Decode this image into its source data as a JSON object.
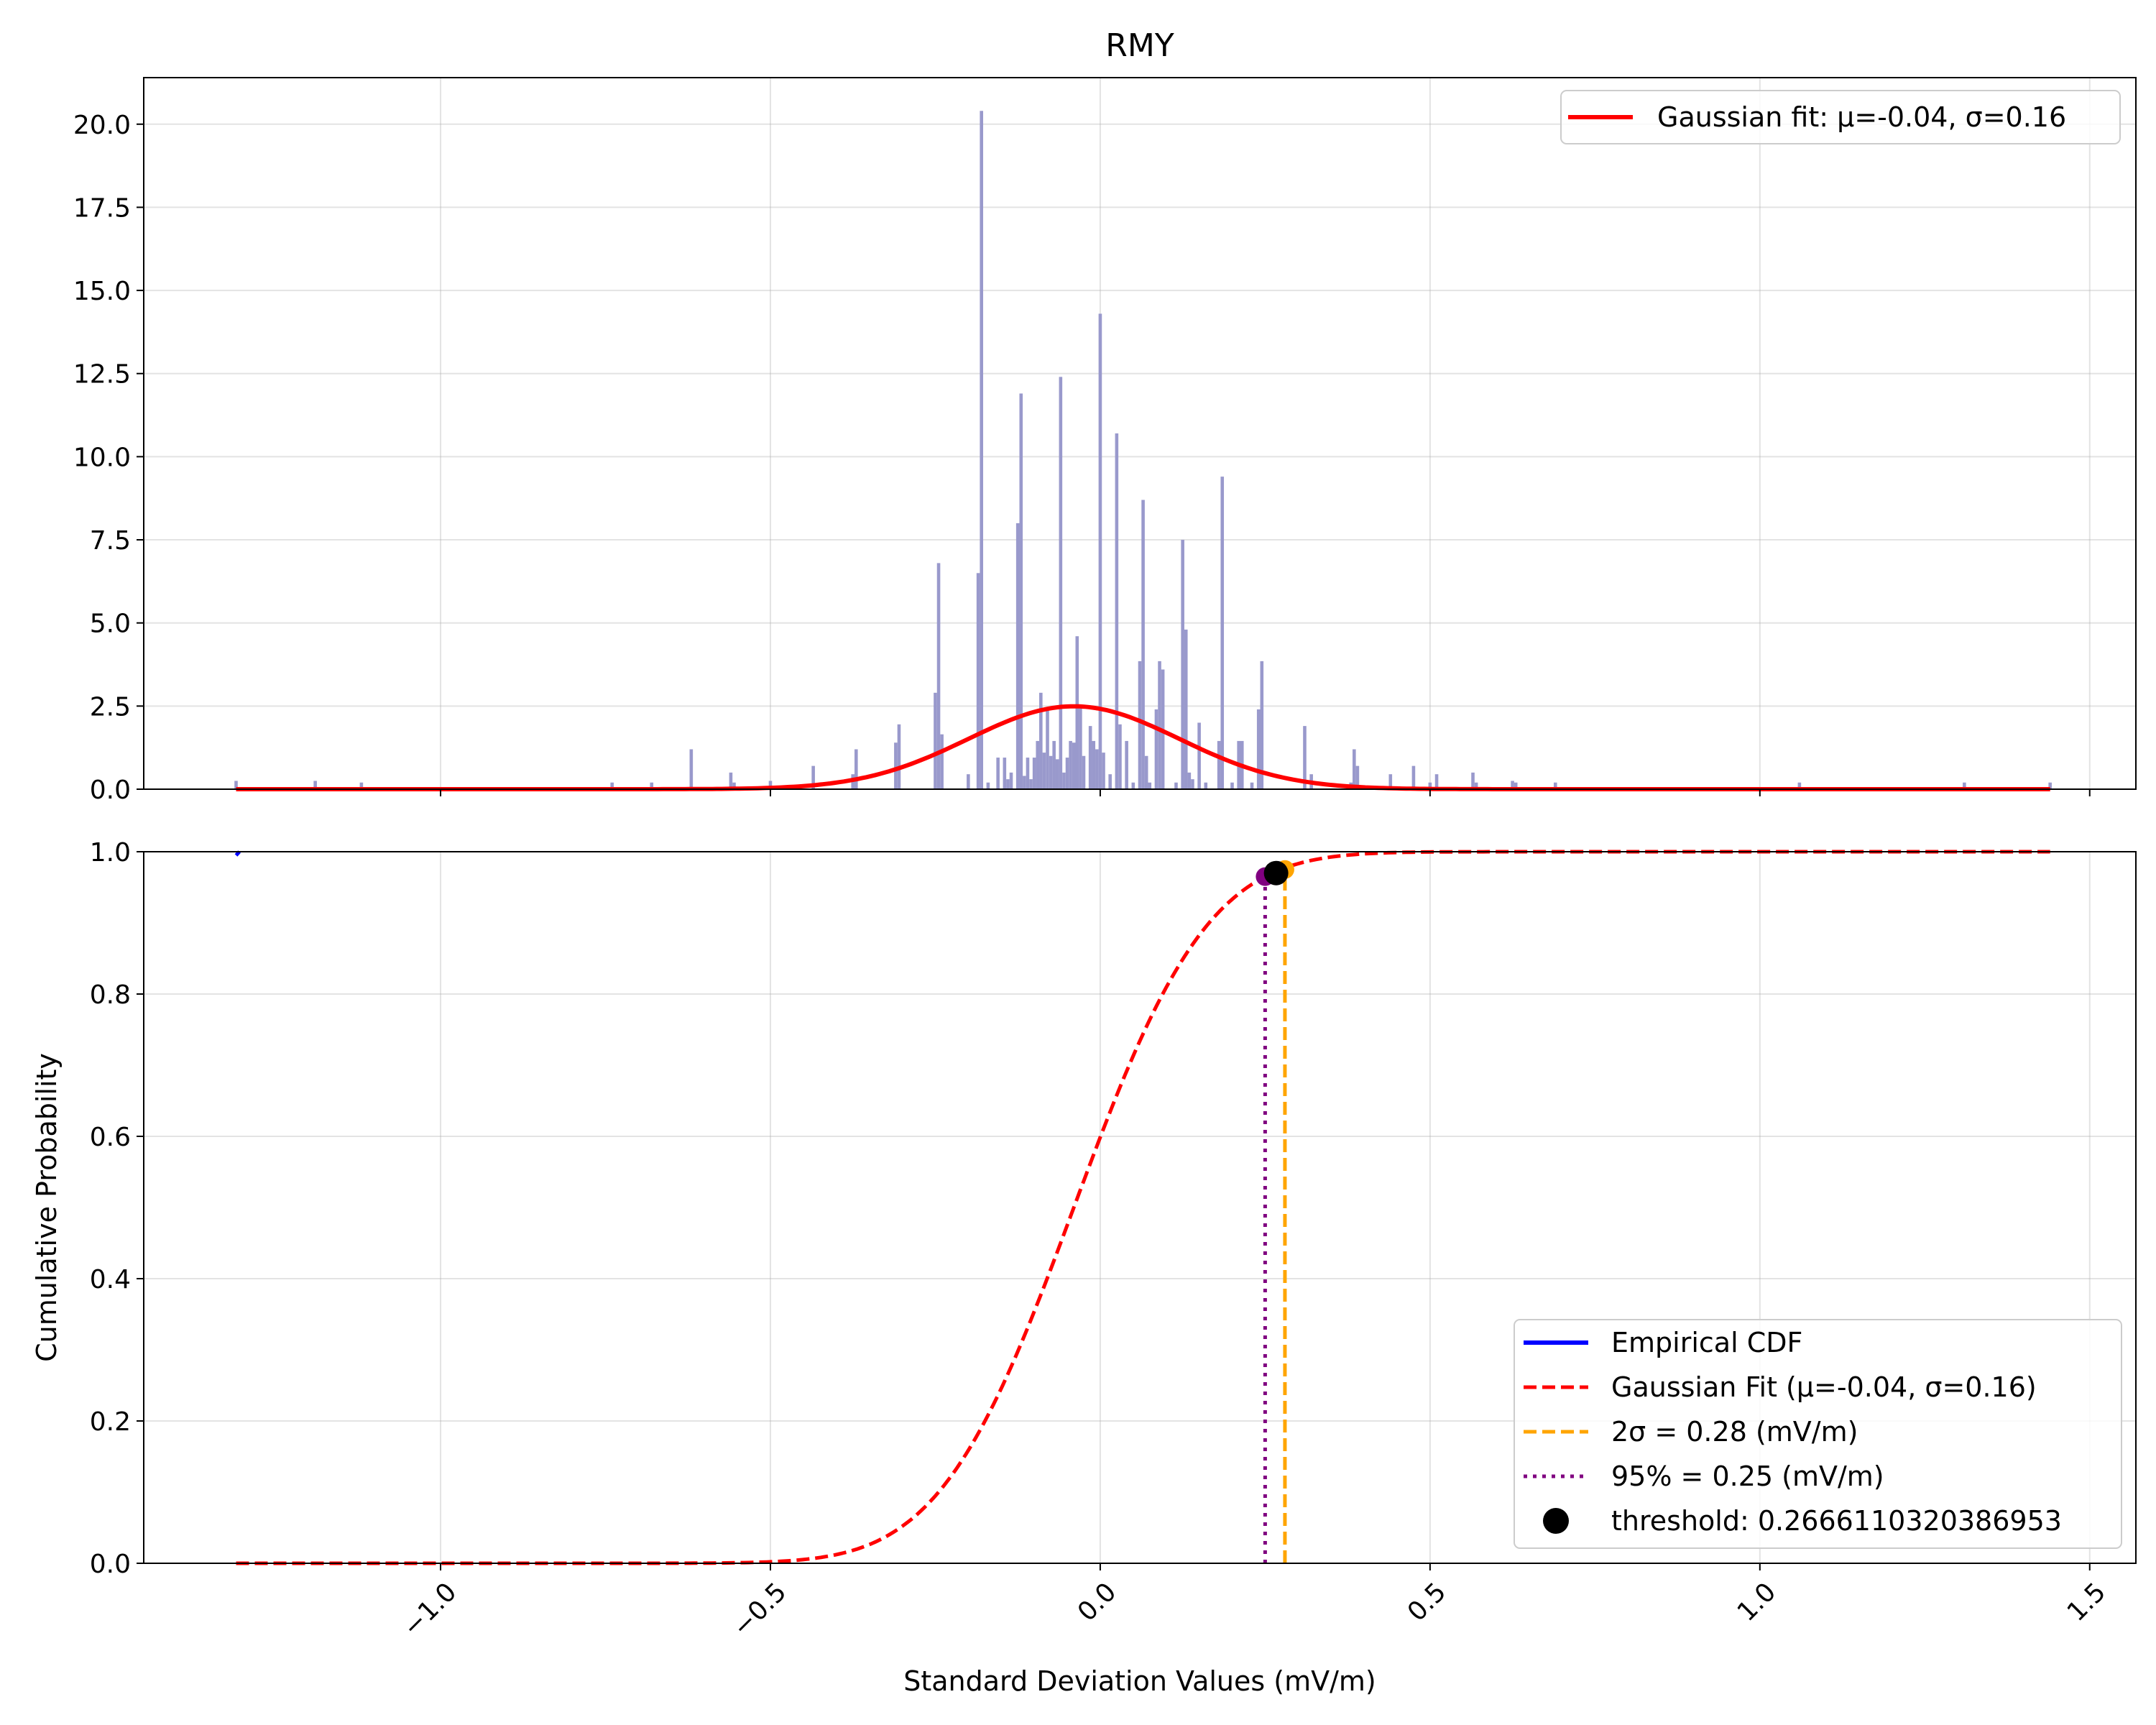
{
  "chart_data": [
    {
      "type": "bar",
      "panel": "top",
      "title": "RMY",
      "xlabel": "",
      "ylabel": "",
      "xlim": [
        -1.45,
        1.57
      ],
      "ylim": [
        0,
        21.4
      ],
      "grid": true,
      "legend_position": "top-right",
      "yticks": [
        {
          "value": 0,
          "label": "0.0"
        },
        {
          "value": 2.5,
          "label": "2.5"
        },
        {
          "value": 5,
          "label": "5.0"
        },
        {
          "value": 7.5,
          "label": "7.5"
        },
        {
          "value": 10,
          "label": "10.0"
        },
        {
          "value": 12.5,
          "label": "12.5"
        },
        {
          "value": 15,
          "label": "15.0"
        },
        {
          "value": 17.5,
          "label": "17.5"
        },
        {
          "value": 20,
          "label": "20.0"
        }
      ],
      "histogram": {
        "color": "#9999cc",
        "bin_width": 0.005,
        "bins": [
          [
            -1.31,
            0.25
          ],
          [
            -1.19,
            0.25
          ],
          [
            -1.12,
            0.2
          ],
          [
            -0.74,
            0.2
          ],
          [
            -0.68,
            0.2
          ],
          [
            -0.62,
            1.2
          ],
          [
            -0.56,
            0.5
          ],
          [
            -0.555,
            0.2
          ],
          [
            -0.5,
            0.25
          ],
          [
            -0.435,
            0.7
          ],
          [
            -0.375,
            0.45
          ],
          [
            -0.37,
            1.2
          ],
          [
            -0.31,
            1.4
          ],
          [
            -0.305,
            1.95
          ],
          [
            -0.25,
            2.9
          ],
          [
            -0.245,
            6.8
          ],
          [
            -0.24,
            1.65
          ],
          [
            -0.2,
            0.45
          ],
          [
            -0.185,
            6.5
          ],
          [
            -0.18,
            20.4
          ],
          [
            -0.17,
            0.2
          ],
          [
            -0.155,
            0.95
          ],
          [
            -0.145,
            0.95
          ],
          [
            -0.14,
            0.3
          ],
          [
            -0.135,
            0.5
          ],
          [
            -0.125,
            8.0
          ],
          [
            -0.12,
            11.9
          ],
          [
            -0.115,
            0.4
          ],
          [
            -0.11,
            0.95
          ],
          [
            -0.105,
            0.3
          ],
          [
            -0.1,
            0.95
          ],
          [
            -0.095,
            1.45
          ],
          [
            -0.09,
            2.9
          ],
          [
            -0.085,
            1.1
          ],
          [
            -0.08,
            2.4
          ],
          [
            -0.075,
            1.0
          ],
          [
            -0.07,
            1.45
          ],
          [
            -0.065,
            0.9
          ],
          [
            -0.06,
            12.4
          ],
          [
            -0.055,
            0.5
          ],
          [
            -0.05,
            0.95
          ],
          [
            -0.045,
            1.45
          ],
          [
            -0.04,
            1.4
          ],
          [
            -0.035,
            4.6
          ],
          [
            -0.03,
            2.5
          ],
          [
            -0.025,
            1.0
          ],
          [
            -0.015,
            1.9
          ],
          [
            -0.01,
            1.45
          ],
          [
            -0.005,
            1.2
          ],
          [
            0.0,
            14.3
          ],
          [
            0.005,
            1.1
          ],
          [
            0.015,
            0.45
          ],
          [
            0.025,
            10.7
          ],
          [
            0.03,
            1.95
          ],
          [
            0.04,
            1.45
          ],
          [
            0.05,
            0.2
          ],
          [
            0.06,
            3.85
          ],
          [
            0.065,
            8.7
          ],
          [
            0.07,
            1.0
          ],
          [
            0.075,
            0.2
          ],
          [
            0.085,
            2.4
          ],
          [
            0.09,
            3.85
          ],
          [
            0.095,
            3.6
          ],
          [
            0.115,
            0.2
          ],
          [
            0.125,
            7.5
          ],
          [
            0.13,
            4.8
          ],
          [
            0.135,
            0.5
          ],
          [
            0.14,
            0.3
          ],
          [
            0.15,
            2.0
          ],
          [
            0.16,
            0.2
          ],
          [
            0.18,
            1.45
          ],
          [
            0.185,
            9.4
          ],
          [
            0.2,
            0.2
          ],
          [
            0.21,
            1.45
          ],
          [
            0.215,
            1.45
          ],
          [
            0.23,
            0.2
          ],
          [
            0.24,
            2.4
          ],
          [
            0.245,
            3.85
          ],
          [
            0.31,
            1.9
          ],
          [
            0.32,
            0.45
          ],
          [
            0.38,
            0.2
          ],
          [
            0.385,
            1.2
          ],
          [
            0.39,
            0.7
          ],
          [
            0.44,
            0.45
          ],
          [
            0.475,
            0.7
          ],
          [
            0.5,
            0.2
          ],
          [
            0.51,
            0.45
          ],
          [
            0.565,
            0.5
          ],
          [
            0.57,
            0.2
          ],
          [
            0.625,
            0.25
          ],
          [
            0.63,
            0.2
          ],
          [
            0.69,
            0.2
          ],
          [
            1.06,
            0.2
          ],
          [
            1.31,
            0.2
          ],
          [
            1.44,
            0.2
          ]
        ]
      },
      "series": [
        {
          "name": "Gaussian fit: μ=-0.04, σ=0.16",
          "type": "line",
          "color": "#ff0000",
          "mu": -0.04,
          "sigma": 0.16,
          "x_range": [
            -1.31,
            1.44
          ]
        }
      ]
    },
    {
      "type": "line",
      "panel": "bottom",
      "title": "",
      "xlabel": "Standard Deviation Values (mV/m)",
      "ylabel": "Cumulative Probability",
      "xlim": [
        -1.45,
        1.57
      ],
      "ylim": [
        0,
        1.0
      ],
      "grid": true,
      "legend_position": "lower-right",
      "xticks": [
        {
          "value": -1.0,
          "label": "−1.0"
        },
        {
          "value": -0.5,
          "label": "−0.5"
        },
        {
          "value": 0.0,
          "label": "0.0"
        },
        {
          "value": 0.5,
          "label": "0.5"
        },
        {
          "value": 1.0,
          "label": "1.0"
        },
        {
          "value": 1.5,
          "label": "1.5"
        }
      ],
      "yticks": [
        {
          "value": 0,
          "label": "0.0"
        },
        {
          "value": 0.2,
          "label": "0.2"
        },
        {
          "value": 0.4,
          "label": "0.4"
        },
        {
          "value": 0.6,
          "label": "0.6"
        },
        {
          "value": 0.8,
          "label": "0.8"
        },
        {
          "value": 1.0,
          "label": "1.0"
        }
      ],
      "series": [
        {
          "name": "Empirical CDF",
          "type": "step",
          "color": "#0000ff",
          "x": [
            -1.31,
            -1.305
          ],
          "y": [
            0.995,
            1.0
          ]
        },
        {
          "name": "Gaussian Fit (μ=-0.04, σ=0.16)",
          "type": "cdf",
          "color": "#ff0000",
          "mu": -0.04,
          "sigma": 0.16,
          "x_range": [
            -1.31,
            1.44
          ]
        },
        {
          "name": "2σ = 0.28 (mV/m)",
          "type": "vline",
          "color": "#ffa500",
          "x": 0.28,
          "y_top": 0.975
        },
        {
          "name": "95% = 0.25 (mV/m)",
          "type": "vline",
          "color": "#800080",
          "x": 0.25,
          "y_top": 0.965
        },
        {
          "name": "threshold: 0.2666110320386953",
          "type": "point",
          "color": "#000000",
          "x": 0.2666110320386953,
          "y": 0.97
        }
      ]
    }
  ]
}
